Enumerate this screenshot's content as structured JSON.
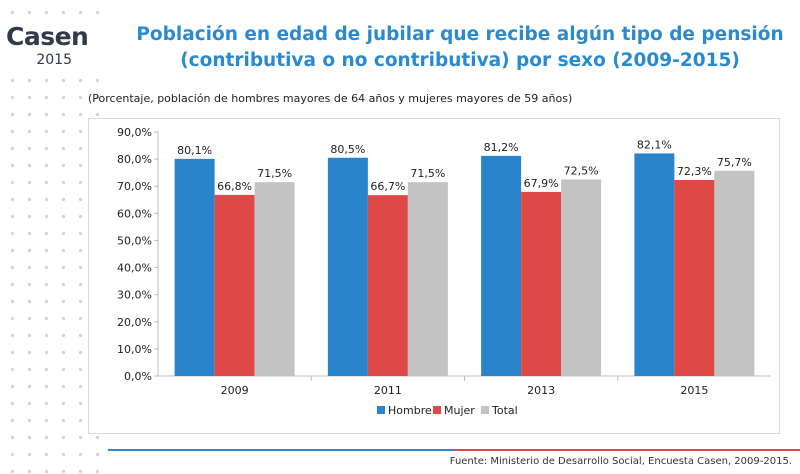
{
  "logo": {
    "word": "Casen",
    "year": "2015"
  },
  "header": {
    "title_line1": "Población en edad de jubilar que recibe algún tipo de pensión",
    "title_line2": "(contributiva o no contributiva) por sexo (2009-2015)",
    "subtitle": "(Porcentaje, población de hombres mayores de 64 años y mujeres mayores de 59 años)"
  },
  "footer": {
    "source": "Fuente: Ministerio de Desarrollo Social, Encuesta Casen, 2009-2015."
  },
  "chart_data": {
    "type": "bar",
    "categories": [
      "2009",
      "2011",
      "2013",
      "2015"
    ],
    "series": [
      {
        "name": "Hombre",
        "color": "#2a84cc",
        "values": [
          80.1,
          80.5,
          81.2,
          82.1
        ],
        "labels": [
          "80,1%",
          "80,5%",
          "81,2%",
          "82,1%"
        ]
      },
      {
        "name": "Mujer",
        "color": "#e04848",
        "values": [
          66.8,
          66.7,
          67.9,
          72.3
        ],
        "labels": [
          "66,8%",
          "66,7%",
          "67,9%",
          "72,3%"
        ]
      },
      {
        "name": "Total",
        "color": "#c3c3c3",
        "values": [
          71.5,
          71.5,
          72.5,
          75.7
        ],
        "labels": [
          "71,5%",
          "71,5%",
          "72,5%",
          "75,7%"
        ]
      }
    ],
    "yticks": [
      "0,0%",
      "10,0%",
      "20,0%",
      "30,0%",
      "40,0%",
      "50,0%",
      "60,0%",
      "70,0%",
      "80,0%",
      "90,0%"
    ],
    "ylim": [
      0,
      90
    ],
    "grid": false,
    "legend_position": "bottom"
  }
}
